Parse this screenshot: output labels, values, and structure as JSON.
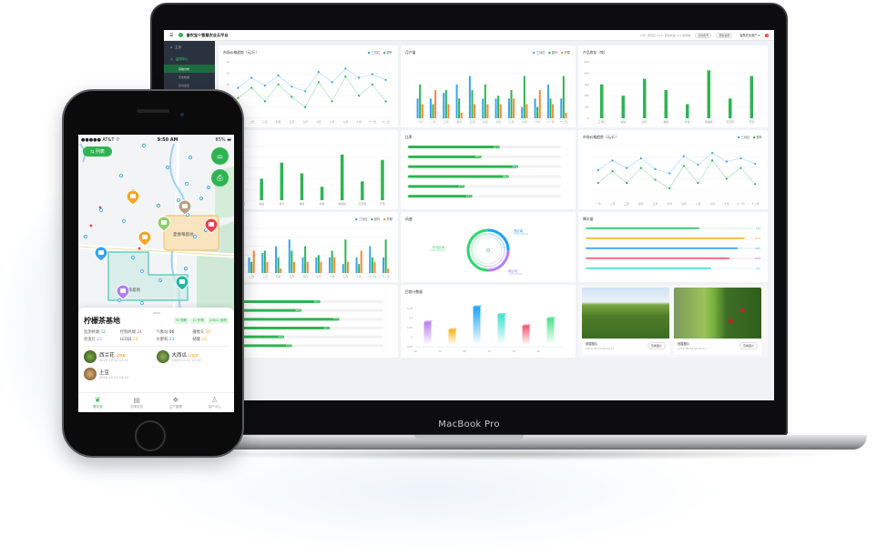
{
  "colors": {
    "brand_green": "#2fb452",
    "blue": "#3ba3f0",
    "orange": "#f5883b",
    "sidebar": "#2a3240"
  },
  "laptop": {
    "brand_label": "MacBook Pro",
    "app": {
      "title": "睿农宝®智慧农业云平台",
      "header_info": "户外, 研究区 20.6, 西南风速, 3/1 晴转阴",
      "header_buttons": [
        "切换账号",
        "帮助说明"
      ],
      "user": "智慧农业用户 ▾",
      "notification_count": "1"
    },
    "sidebar": {
      "items": [
        {
          "label": "主页",
          "icon": "home-icon"
        },
        {
          "label": "监测中心",
          "icon": "monitor-icon",
          "active": true
        }
      ],
      "subitems": [
        {
          "label": "基地分布",
          "active": true
        },
        {
          "label": "历史数据"
        },
        {
          "label": "实时监控"
        }
      ]
    },
    "photos": [
      {
        "caption": "拍摄图片",
        "datetime": "2019.08.26  08:00:11",
        "button": "查看图片"
      },
      {
        "caption": "拍摄图片",
        "datetime": "2019.08.26  08:00:11",
        "button": "查看图片"
      }
    ]
  },
  "chart_data": [
    {
      "type": "line",
      "title": "市场价格趋势（元/斤）",
      "categories": [
        "一月",
        "二月",
        "三月",
        "四月",
        "五月",
        "六月",
        "七月",
        "八月",
        "九月",
        "十月",
        "十一月",
        "十二月"
      ],
      "series": [
        {
          "name": "三月红",
          "color": "#3ba3f0",
          "values": [
            13.5,
            18,
            14.5,
            19,
            14,
            12,
            20.5,
            16,
            22,
            18,
            19.5,
            17
          ]
        },
        {
          "name": "夏叶",
          "color": "#2fb452",
          "values": [
            9,
            13.5,
            7.5,
            15,
            9.5,
            5,
            16,
            7.5,
            18.5,
            10,
            15,
            7.5
          ]
        }
      ],
      "ylim": [
        0,
        25
      ],
      "yticks": [
        0,
        5,
        10,
        15,
        20,
        25
      ],
      "grid": true,
      "legend": "top-right"
    },
    {
      "type": "bar",
      "title": "月产量",
      "categories": [
        "一月",
        "二月",
        "三月",
        "四月",
        "五月",
        "六月",
        "七月",
        "八月",
        "九月",
        "十月",
        "十一月",
        "十二月"
      ],
      "series": [
        {
          "name": "三月红",
          "color": "#3ba3f0",
          "values": [
            35,
            35,
            45,
            60,
            75,
            35,
            35,
            35,
            20,
            35,
            60,
            35
          ]
        },
        {
          "name": "夏叶",
          "color": "#2fb452",
          "values": [
            60,
            25,
            50,
            35,
            50,
            60,
            40,
            50,
            75,
            20,
            35,
            75
          ]
        },
        {
          "name": "柠檬",
          "color": "#f5883b",
          "values": [
            25,
            50,
            25,
            10,
            25,
            25,
            25,
            35,
            25,
            50,
            25,
            10
          ]
        }
      ],
      "ylim": [
        0,
        100
      ],
      "grid": true,
      "legend": "top-right"
    },
    {
      "type": "bar",
      "title": "产品库存（吨）",
      "categories": [
        "三月红",
        "青柚",
        "夏叶",
        "柑橘",
        "柠檬",
        "猕猴桃",
        "无花果",
        "芒果"
      ],
      "series": [
        {
          "color": "#2fb452",
          "values": [
            300,
            200,
            350,
            250,
            125,
            425,
            175,
            375
          ]
        }
      ],
      "ylim": [
        0,
        500
      ],
      "yticks": [
        0,
        100,
        200,
        300,
        400,
        500
      ],
      "grid": true
    },
    {
      "type": "bar",
      "title": "",
      "categories": [
        "三月红",
        "青柚",
        "夏叶",
        "柑橘",
        "柠檬",
        "猕猴桃",
        "无花果",
        "芒果"
      ],
      "series": [
        {
          "color": "#2fb452",
          "values": [
            300,
            200,
            350,
            250,
            125,
            425,
            175,
            375
          ]
        }
      ],
      "ylim": [
        0,
        500
      ],
      "grid": true
    },
    {
      "type": "progress",
      "title": "比率",
      "values": [
        60,
        48,
        72,
        66,
        37,
        42
      ],
      "unit": "%",
      "color": "#2fb452"
    },
    {
      "type": "line",
      "title": "市场价格趋势（元/斤）",
      "categories": [
        "一月",
        "二月",
        "三月",
        "四月",
        "五月",
        "六月",
        "七月",
        "八月",
        "九月",
        "十月",
        "十一月",
        "十二月"
      ],
      "series": [
        {
          "name": "三月红",
          "color": "#3ba3f0",
          "values": [
            14,
            18.5,
            15,
            19.5,
            14.5,
            12.5,
            20.5,
            16.5,
            22,
            18,
            19.5,
            17
          ]
        },
        {
          "name": "夏叶",
          "color": "#2fb452",
          "values": [
            8,
            13.5,
            8,
            15,
            9.5,
            5.5,
            16,
            8,
            18.5,
            10,
            15,
            7.5
          ]
        }
      ],
      "ylim": [
        0,
        25
      ],
      "grid": true,
      "legend": "top-right"
    },
    {
      "type": "bar",
      "title": "",
      "categories": [
        "一月",
        "二月",
        "三月",
        "四月",
        "五月",
        "六月",
        "七月",
        "八月",
        "九月",
        "十月",
        "十一月",
        "十二月"
      ],
      "series": [
        {
          "name": "三月红",
          "color": "#3ba3f0",
          "values": [
            35,
            35,
            45,
            60,
            75,
            35,
            35,
            35,
            20,
            35,
            60,
            35
          ]
        },
        {
          "name": "夏叶",
          "color": "#2fb452",
          "values": [
            60,
            25,
            50,
            35,
            50,
            60,
            40,
            50,
            75,
            20,
            35,
            75
          ]
        },
        {
          "name": "柠檬",
          "color": "#f5883b",
          "values": [
            25,
            50,
            25,
            10,
            25,
            25,
            25,
            35,
            25,
            50,
            25,
            10
          ]
        }
      ],
      "ylim": [
        0,
        100
      ],
      "grid": true,
      "legend": "top-right"
    },
    {
      "type": "pie",
      "title": "风速",
      "categories": [
        "西区域",
        "南区域",
        "东北区域"
      ],
      "values": [
        25,
        25,
        50
      ],
      "colors": [
        "#1aa3f5",
        "#b57ef5",
        "#2fd66e"
      ]
    },
    {
      "type": "progress",
      "title": "降水量",
      "values": [
        123,
        2014,
        1987,
        1829,
        864
      ],
      "fill": [
        0.68,
        0.95,
        0.91,
        0.86,
        0.75
      ],
      "colors": [
        "#1ec86a",
        "#f6b318",
        "#2b9cf5",
        "#f5546e",
        "#3de0d0"
      ]
    },
    {
      "type": "progress",
      "title": "",
      "values": [
        60,
        48,
        72,
        66,
        37,
        42
      ],
      "unit": "%",
      "color": "#2fb452"
    },
    {
      "type": "bar",
      "title": "目前计数量",
      "xticks": [
        "00",
        "04",
        "08",
        "12",
        "16",
        "20"
      ],
      "yticks": [
        -0.25,
        0,
        0.25,
        0.5,
        0.75
      ],
      "ylim": [
        -0.25,
        0.85
      ],
      "values": [
        0.4,
        0.2,
        0.8,
        0.6,
        0.3,
        0.5
      ],
      "colors": [
        "#b57ef5",
        "#f6b318",
        "#1aa3f5",
        "#3de0d0",
        "#f5546e",
        "#4fe08a"
      ]
    }
  ],
  "phone": {
    "status": {
      "carrier": "●●●●● AT&T ⌔",
      "time": "9:50 AM",
      "battery": "85% ▬"
    },
    "list_button": "⇆ 列表",
    "map": {
      "areas": [
        "夏春莓基地",
        "蓝莓基地"
      ]
    },
    "base": {
      "name": "柠檬茶基地",
      "tags": [
        "39 物联",
        "10 作物",
        "22622 面积"
      ],
      "stats": [
        {
          "label": "监测终端",
          "value": "12",
          "color": "#2fb452"
        },
        {
          "label": "控制终端",
          "value": "24",
          "color": "#f5546e"
        },
        {
          "label": "气象站",
          "value": "06",
          "color": "#333"
        },
        {
          "label": "摄像头",
          "value": "38",
          "color": "#f5a623"
        },
        {
          "label": "杀虫灯",
          "value": "23",
          "color": "#b57ef5"
        },
        {
          "label": "LED屏",
          "value": "23",
          "color": "#f5a623"
        },
        {
          "label": "水肥机",
          "value": "23",
          "color": "#3ba3f0"
        },
        {
          "label": "储罐",
          "value": "23",
          "color": "#f5a623"
        }
      ]
    },
    "crops": [
      {
        "name": "西兰花",
        "stage": "采摘期",
        "date": "2020.12.12   12:12"
      },
      {
        "name": "大西瓜",
        "stage": "幼苗期",
        "date": "2020.12.12   12:12"
      },
      {
        "name": "土豆",
        "stage": "",
        "date": "2020.12.12   12:12"
      }
    ],
    "tabs": [
      {
        "label": "看农宝",
        "icon": "sprout-icon",
        "active": true
      },
      {
        "label": "农情农技",
        "icon": "document-icon"
      },
      {
        "label": "生产管理",
        "icon": "grid-icon"
      },
      {
        "label": "用户中心",
        "icon": "user-icon"
      }
    ]
  }
}
